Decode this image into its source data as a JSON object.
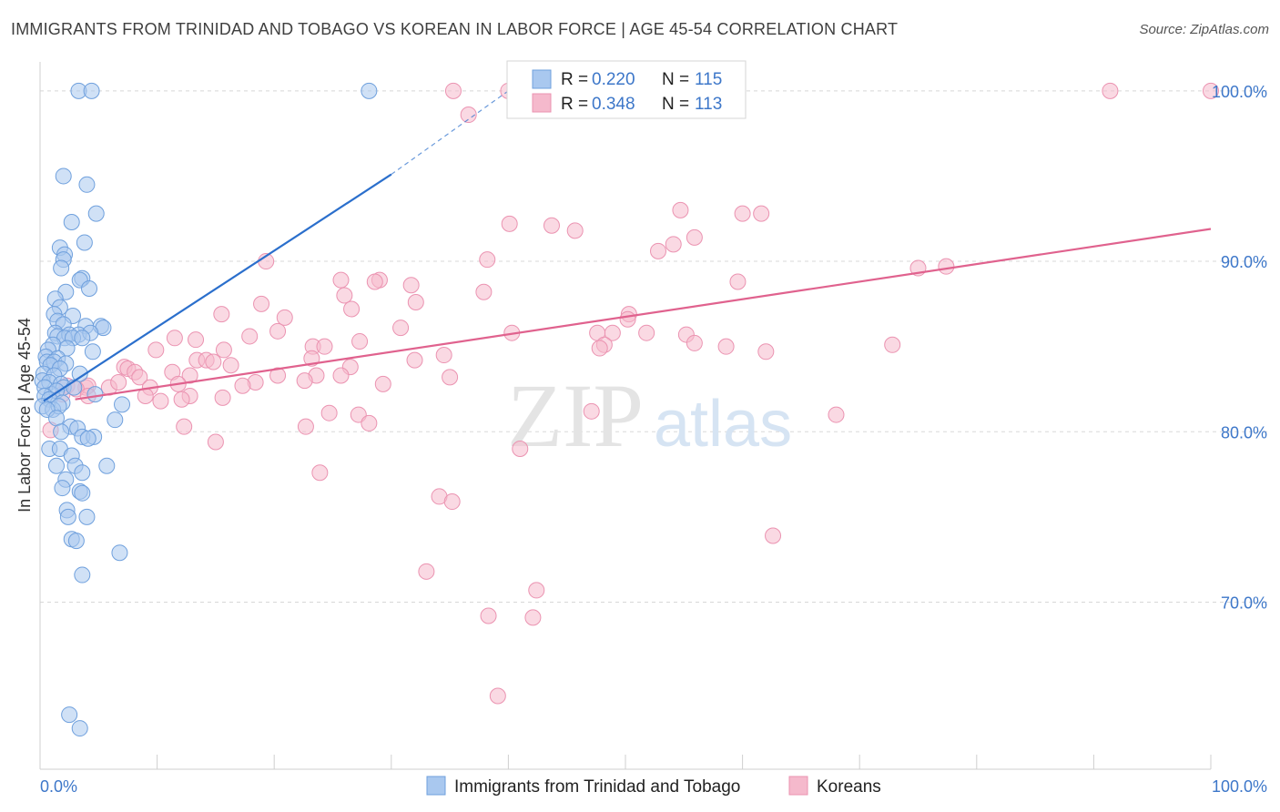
{
  "title": "IMMIGRANTS FROM TRINIDAD AND TOBAGO VS KOREAN IN LABOR FORCE | AGE 45-54 CORRELATION CHART",
  "source": "Source: ZipAtlas.com",
  "watermark": {
    "zip": "ZIP",
    "atlas": "atlas"
  },
  "colors": {
    "blue_fill": "#a9c8ef",
    "blue_stroke": "#6fa0dd",
    "blue_line": "#2b6fcc",
    "pink_fill": "#f5b9cc",
    "pink_stroke": "#eb93b1",
    "pink_line": "#e0628e",
    "tick_text": "#3d77c9",
    "grid": "#d8d8d8"
  },
  "legend": {
    "rows": [
      {
        "r_label": "R = ",
        "r_value": "0.220",
        "n_label": "N = ",
        "n_value": "115"
      },
      {
        "r_label": "R = ",
        "r_value": "0.348",
        "n_label": "N = ",
        "n_value": "113"
      }
    ]
  },
  "chart_data": {
    "type": "scatter",
    "title": "IMMIGRANTS FROM TRINIDAD AND TOBAGO VS KOREAN IN LABOR FORCE | AGE 45-54 CORRELATION CHART",
    "xlabel": "",
    "ylabel": "In Labor Force | Age 45-54",
    "xlim": [
      0,
      100
    ],
    "ylim": [
      60.2,
      101.7
    ],
    "x_tick_labels": [
      "0.0%",
      "100.0%"
    ],
    "y_ticks": [
      70,
      80,
      90,
      100
    ],
    "y_tick_labels": [
      "70.0%",
      "80.0%",
      "90.0%",
      "100.0%"
    ],
    "grid": true,
    "legend_position": "top-center",
    "series": [
      {
        "name": "Immigrants from Trinidad and Tobago",
        "color": "#6fa0dd",
        "trend": {
          "x": [
            0.3,
            30.0
          ],
          "y": [
            81.8,
            95.1
          ],
          "dashed_to": [
            40.0,
            100.0
          ]
        },
        "points": [
          [
            3.3,
            100
          ],
          [
            4.4,
            100
          ],
          [
            28.1,
            100
          ],
          [
            2.0,
            95
          ],
          [
            4.0,
            94.5
          ],
          [
            4.8,
            92.8
          ],
          [
            2.7,
            92.3
          ],
          [
            3.8,
            91.1
          ],
          [
            1.7,
            90.8
          ],
          [
            2.1,
            90.4
          ],
          [
            2.0,
            90.1
          ],
          [
            1.8,
            89.6
          ],
          [
            3.6,
            89
          ],
          [
            3.4,
            88.9
          ],
          [
            4.2,
            88.4
          ],
          [
            2.2,
            88.2
          ],
          [
            1.3,
            87.8
          ],
          [
            1.7,
            87.3
          ],
          [
            1.2,
            86.9
          ],
          [
            2.8,
            86.8
          ],
          [
            1.5,
            86.5
          ],
          [
            2.0,
            86.3
          ],
          [
            3.9,
            86.2
          ],
          [
            5.2,
            86.2
          ],
          [
            5.4,
            86.1
          ],
          [
            1.3,
            85.8
          ],
          [
            1.5,
            85.6
          ],
          [
            2.5,
            85.7
          ],
          [
            3.3,
            85.7
          ],
          [
            4.3,
            85.8
          ],
          [
            2.1,
            85.5
          ],
          [
            2.8,
            85.5
          ],
          [
            3.6,
            85.5
          ],
          [
            1.1,
            85.1
          ],
          [
            0.7,
            84.8
          ],
          [
            2.3,
            84.9
          ],
          [
            4.5,
            84.7
          ],
          [
            0.5,
            84.4
          ],
          [
            1.5,
            84.3
          ],
          [
            0.6,
            84.1
          ],
          [
            1.2,
            84.1
          ],
          [
            0.9,
            83.9
          ],
          [
            2.2,
            84.0
          ],
          [
            1.7,
            83.7
          ],
          [
            0.3,
            83.4
          ],
          [
            1.2,
            83.3
          ],
          [
            3.4,
            83.4
          ],
          [
            0.2,
            83.0
          ],
          [
            0.8,
            82.9
          ],
          [
            1.8,
            82.8
          ],
          [
            0.4,
            82.6
          ],
          [
            2.0,
            82.6
          ],
          [
            2.9,
            82.6
          ],
          [
            1.0,
            82.2
          ],
          [
            1.4,
            82.4
          ],
          [
            4.7,
            82.2
          ],
          [
            0.4,
            82.1
          ],
          [
            0.8,
            81.9
          ],
          [
            1.9,
            81.7
          ],
          [
            0.2,
            81.5
          ],
          [
            1.1,
            81.3
          ],
          [
            1.6,
            81.5
          ],
          [
            7.0,
            81.6
          ],
          [
            0.6,
            81.3
          ],
          [
            1.4,
            80.8
          ],
          [
            6.4,
            80.7
          ],
          [
            2.6,
            80.3
          ],
          [
            1.8,
            80.0
          ],
          [
            3.2,
            80.2
          ],
          [
            3.6,
            79.7
          ],
          [
            4.6,
            79.7
          ],
          [
            4.1,
            79.6
          ],
          [
            0.8,
            79.0
          ],
          [
            1.7,
            79.0
          ],
          [
            2.7,
            78.6
          ],
          [
            1.4,
            78.0
          ],
          [
            3.0,
            78.0
          ],
          [
            3.6,
            77.6
          ],
          [
            5.7,
            78.0
          ],
          [
            2.2,
            77.2
          ],
          [
            1.9,
            76.7
          ],
          [
            3.4,
            76.5
          ],
          [
            3.6,
            76.4
          ],
          [
            2.3,
            75.4
          ],
          [
            4.0,
            75.0
          ],
          [
            2.4,
            75.0
          ],
          [
            2.7,
            73.7
          ],
          [
            3.1,
            73.6
          ],
          [
            6.8,
            72.9
          ],
          [
            3.6,
            71.6
          ],
          [
            2.5,
            63.4
          ],
          [
            3.4,
            62.6
          ]
        ]
      },
      {
        "name": "Koreans",
        "color": "#eb93b1",
        "trend": {
          "x": [
            3.0,
            100.0
          ],
          "y": [
            81.9,
            91.9
          ]
        },
        "points": [
          [
            35.3,
            100
          ],
          [
            40.0,
            100
          ],
          [
            91.4,
            100
          ],
          [
            100,
            100
          ],
          [
            36.6,
            98.6
          ],
          [
            54.7,
            93.0
          ],
          [
            60.0,
            92.8
          ],
          [
            61.6,
            92.8
          ],
          [
            40.1,
            92.2
          ],
          [
            43.7,
            92.1
          ],
          [
            45.7,
            91.8
          ],
          [
            55.9,
            91.4
          ],
          [
            54.1,
            91.0
          ],
          [
            52.8,
            90.6
          ],
          [
            38.2,
            90.1
          ],
          [
            19.3,
            90.0
          ],
          [
            77.4,
            89.7
          ],
          [
            75.0,
            89.6
          ],
          [
            25.7,
            88.9
          ],
          [
            29.0,
            88.9
          ],
          [
            28.6,
            88.8
          ],
          [
            31.7,
            88.6
          ],
          [
            59.6,
            88.8
          ],
          [
            37.9,
            88.2
          ],
          [
            26.0,
            88.0
          ],
          [
            32.1,
            87.6
          ],
          [
            18.9,
            87.5
          ],
          [
            26.6,
            87.2
          ],
          [
            15.5,
            86.9
          ],
          [
            20.9,
            86.7
          ],
          [
            50.3,
            86.9
          ],
          [
            50.2,
            86.6
          ],
          [
            30.8,
            86.1
          ],
          [
            20.3,
            85.9
          ],
          [
            40.3,
            85.8
          ],
          [
            47.6,
            85.8
          ],
          [
            48.9,
            85.8
          ],
          [
            51.8,
            85.8
          ],
          [
            55.2,
            85.7
          ],
          [
            17.9,
            85.6
          ],
          [
            11.5,
            85.5
          ],
          [
            13.3,
            85.4
          ],
          [
            27.3,
            85.3
          ],
          [
            55.9,
            85.2
          ],
          [
            48.2,
            85.1
          ],
          [
            58.6,
            85.0
          ],
          [
            72.8,
            85.1
          ],
          [
            23.3,
            85.0
          ],
          [
            24.3,
            85.0
          ],
          [
            47.8,
            84.9
          ],
          [
            15.7,
            84.8
          ],
          [
            9.9,
            84.8
          ],
          [
            62.0,
            84.7
          ],
          [
            34.5,
            84.5
          ],
          [
            23.2,
            84.3
          ],
          [
            13.4,
            84.2
          ],
          [
            14.2,
            84.2
          ],
          [
            14.8,
            84.1
          ],
          [
            32.0,
            84.2
          ],
          [
            16.3,
            83.9
          ],
          [
            26.5,
            83.8
          ],
          [
            7.2,
            83.8
          ],
          [
            7.5,
            83.7
          ],
          [
            8.1,
            83.5
          ],
          [
            11.3,
            83.5
          ],
          [
            12.8,
            83.3
          ],
          [
            8.5,
            83.2
          ],
          [
            20.3,
            83.3
          ],
          [
            23.6,
            83.3
          ],
          [
            25.7,
            83.3
          ],
          [
            22.6,
            83.0
          ],
          [
            29.3,
            82.8
          ],
          [
            18.4,
            82.9
          ],
          [
            35.0,
            83.2
          ],
          [
            17.3,
            82.7
          ],
          [
            11.8,
            82.8
          ],
          [
            3.9,
            82.6
          ],
          [
            4.1,
            82.7
          ],
          [
            5.9,
            82.6
          ],
          [
            6.7,
            82.9
          ],
          [
            9.4,
            82.6
          ],
          [
            2.3,
            82.7
          ],
          [
            3.1,
            82.5
          ],
          [
            1.9,
            82.2
          ],
          [
            4.1,
            82.1
          ],
          [
            9.0,
            82.1
          ],
          [
            12.8,
            82.1
          ],
          [
            10.3,
            81.8
          ],
          [
            12.1,
            81.9
          ],
          [
            15.6,
            82.0
          ],
          [
            24.7,
            81.1
          ],
          [
            27.2,
            81.0
          ],
          [
            47.1,
            81.2
          ],
          [
            68.0,
            81.0
          ],
          [
            28.1,
            80.5
          ],
          [
            12.3,
            80.3
          ],
          [
            22.7,
            80.3
          ],
          [
            0.9,
            80.1
          ],
          [
            15.0,
            79.4
          ],
          [
            41.0,
            79.0
          ],
          [
            23.9,
            77.6
          ],
          [
            34.1,
            76.2
          ],
          [
            35.2,
            75.9
          ],
          [
            62.6,
            73.9
          ],
          [
            33.0,
            71.8
          ],
          [
            42.4,
            70.7
          ],
          [
            38.3,
            69.2
          ],
          [
            42.1,
            69.1
          ],
          [
            39.1,
            64.5
          ]
        ]
      }
    ]
  },
  "bottom_legend": [
    {
      "label": "Immigrants from Trinidad and Tobago"
    },
    {
      "label": "Koreans"
    }
  ]
}
